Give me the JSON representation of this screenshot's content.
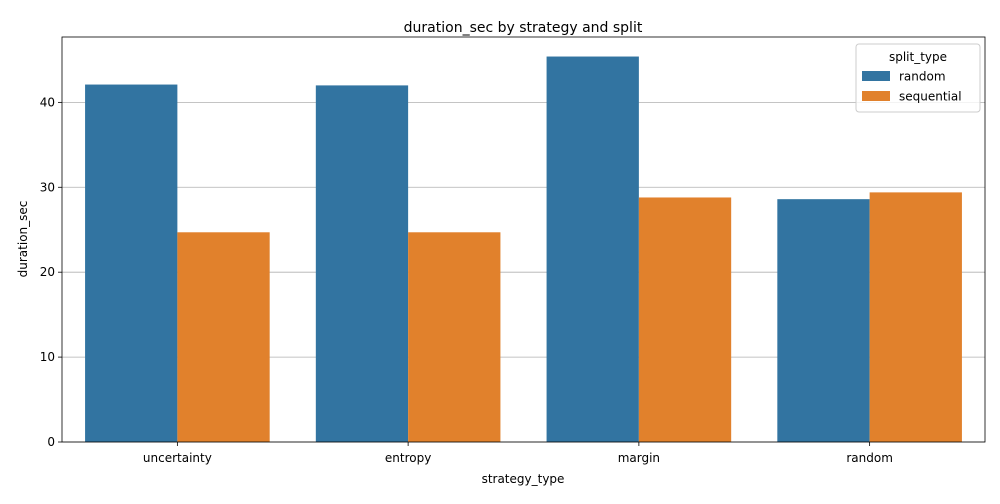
{
  "chart_data": {
    "type": "bar",
    "title": "duration_sec by strategy and split",
    "xlabel": "strategy_type",
    "ylabel": "duration_sec",
    "categories": [
      "uncertainty",
      "entropy",
      "margin",
      "random"
    ],
    "series": [
      {
        "name": "random",
        "color": "#3274a1",
        "values": [
          42.1,
          42.0,
          45.4,
          28.6
        ]
      },
      {
        "name": "sequential",
        "color": "#e1812c",
        "values": [
          24.7,
          24.7,
          28.8,
          29.4
        ]
      }
    ],
    "ylim": [
      0,
      47.7
    ],
    "yticks": [
      0,
      10,
      20,
      30,
      40
    ],
    "grid": "y",
    "legend": {
      "title": "split_type",
      "position": "top-right"
    }
  }
}
